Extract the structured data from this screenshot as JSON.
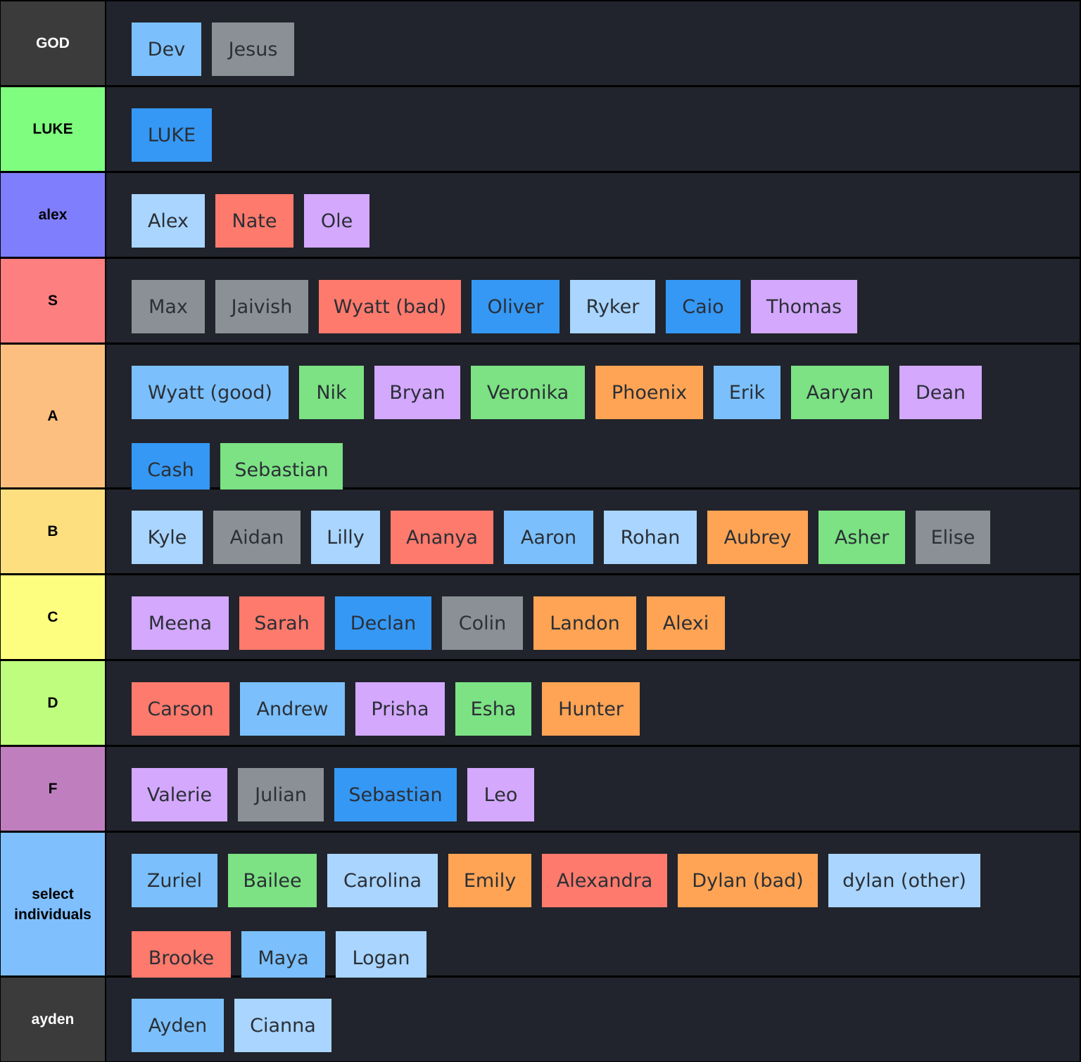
{
  "colors": {
    "light_blue": "#7bc0fc",
    "pale_blue": "#a9d5fe",
    "blue": "#3598f5",
    "gray": "#8b9096",
    "red": "#fd7a6c",
    "purple": "#d3a8fd",
    "green": "#7ce283",
    "orange": "#fea454",
    "content_bg": "#21242c"
  },
  "tiers": [
    {
      "label": "GOD",
      "color": "#3b3b3b",
      "text_color": "#ffffff",
      "items": [
        {
          "name": "Dev",
          "color": "light_blue"
        },
        {
          "name": "Jesus",
          "color": "gray"
        }
      ]
    },
    {
      "label": "LUKE",
      "color": "#7ffd7f",
      "text_color": "#000000",
      "items": [
        {
          "name": "LUKE",
          "color": "blue"
        }
      ]
    },
    {
      "label": "alex",
      "color": "#7f7ffd",
      "text_color": "#000000",
      "items": [
        {
          "name": "Alex",
          "color": "pale_blue"
        },
        {
          "name": "Nate",
          "color": "red"
        },
        {
          "name": "Ole",
          "color": "purple"
        }
      ]
    },
    {
      "label": "S",
      "color": "#fd7f7f",
      "text_color": "#000000",
      "items": [
        {
          "name": "Max",
          "color": "gray"
        },
        {
          "name": "Jaivish",
          "color": "gray"
        },
        {
          "name": "Wyatt (bad)",
          "color": "red"
        },
        {
          "name": "Oliver",
          "color": "blue"
        },
        {
          "name": "Ryker",
          "color": "pale_blue"
        },
        {
          "name": "Caio",
          "color": "blue"
        },
        {
          "name": "Thomas",
          "color": "purple"
        }
      ]
    },
    {
      "label": "A",
      "color": "#fdbf7f",
      "text_color": "#000000",
      "items": [
        {
          "name": "Wyatt (good)",
          "color": "light_blue"
        },
        {
          "name": "Nik",
          "color": "green"
        },
        {
          "name": "Bryan",
          "color": "purple"
        },
        {
          "name": "Veronika",
          "color": "green"
        },
        {
          "name": "Phoenix",
          "color": "orange"
        },
        {
          "name": "Erik",
          "color": "light_blue"
        },
        {
          "name": "Aaryan",
          "color": "green"
        },
        {
          "name": "Dean",
          "color": "purple"
        },
        {
          "name": "Cash",
          "color": "blue"
        },
        {
          "name": "Sebastian",
          "color": "green"
        }
      ]
    },
    {
      "label": "B",
      "color": "#fddf7f",
      "text_color": "#000000",
      "items": [
        {
          "name": "Kyle",
          "color": "pale_blue"
        },
        {
          "name": "Aidan",
          "color": "gray"
        },
        {
          "name": "Lilly",
          "color": "pale_blue"
        },
        {
          "name": "Ananya",
          "color": "red"
        },
        {
          "name": "Aaron",
          "color": "light_blue"
        },
        {
          "name": "Rohan",
          "color": "pale_blue"
        },
        {
          "name": "Aubrey",
          "color": "orange"
        },
        {
          "name": "Asher",
          "color": "green"
        },
        {
          "name": "Elise",
          "color": "gray"
        }
      ]
    },
    {
      "label": "C",
      "color": "#fdfd7f",
      "text_color": "#000000",
      "items": [
        {
          "name": "Meena",
          "color": "purple"
        },
        {
          "name": "Sarah",
          "color": "red"
        },
        {
          "name": "Declan",
          "color": "blue"
        },
        {
          "name": "Colin",
          "color": "gray"
        },
        {
          "name": "Landon",
          "color": "orange"
        },
        {
          "name": "Alexi",
          "color": "orange"
        }
      ]
    },
    {
      "label": "D",
      "color": "#bffd7f",
      "text_color": "#000000",
      "items": [
        {
          "name": "Carson",
          "color": "red"
        },
        {
          "name": "Andrew",
          "color": "light_blue"
        },
        {
          "name": "Prisha",
          "color": "purple"
        },
        {
          "name": "Esha",
          "color": "green"
        },
        {
          "name": "Hunter",
          "color": "orange"
        }
      ]
    },
    {
      "label": "F",
      "color": "#bf7fbf",
      "text_color": "#000000",
      "items": [
        {
          "name": "Valerie",
          "color": "purple"
        },
        {
          "name": "Julian",
          "color": "gray"
        },
        {
          "name": "Sebastian",
          "color": "blue"
        },
        {
          "name": "Leo",
          "color": "purple"
        }
      ]
    },
    {
      "label": "select individuals",
      "color": "#7fbffd",
      "text_color": "#000000",
      "items": [
        {
          "name": "Zuriel",
          "color": "light_blue"
        },
        {
          "name": "Bailee",
          "color": "green"
        },
        {
          "name": "Carolina",
          "color": "pale_blue"
        },
        {
          "name": "Emily",
          "color": "orange"
        },
        {
          "name": "Alexandra",
          "color": "red"
        },
        {
          "name": "Dylan (bad)",
          "color": "orange"
        },
        {
          "name": "dylan (other)",
          "color": "pale_blue"
        },
        {
          "name": "Brooke",
          "color": "red"
        },
        {
          "name": "Maya",
          "color": "light_blue"
        },
        {
          "name": "Logan",
          "color": "pale_blue"
        }
      ]
    },
    {
      "label": "ayden",
      "color": "#3b3b3b",
      "text_color": "#ffffff",
      "items": [
        {
          "name": "Ayden",
          "color": "light_blue"
        },
        {
          "name": "Cianna",
          "color": "pale_blue"
        }
      ]
    }
  ]
}
